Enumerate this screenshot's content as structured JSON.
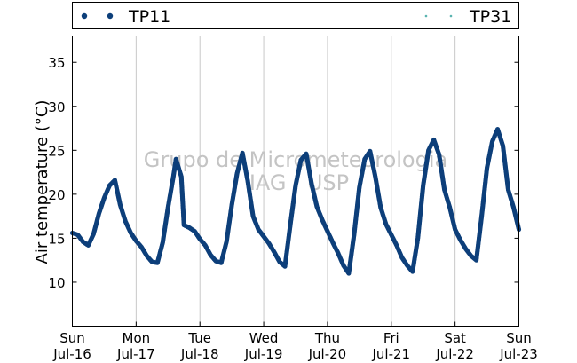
{
  "chart_data": {
    "type": "scatter",
    "title": "",
    "xlabel": "",
    "ylabel": "Air temperature (°C)",
    "watermark": [
      "Grupo de Micrometeorologia",
      "IAG / USP"
    ],
    "legend": {
      "placement": "top",
      "entries": [
        "TP11",
        "TP31"
      ]
    },
    "xlim": [
      "2023-07-16",
      "2023-07-23"
    ],
    "ylim": [
      5,
      38
    ],
    "yticks": [
      10,
      15,
      20,
      25,
      30,
      35
    ],
    "xticks": [
      {
        "day": "Sun",
        "date": "Jul-16"
      },
      {
        "day": "Mon",
        "date": "Jul-17"
      },
      {
        "day": "Tue",
        "date": "Jul-18"
      },
      {
        "day": "Wed",
        "date": "Jul-19"
      },
      {
        "day": "Thu",
        "date": "Jul-20"
      },
      {
        "day": "Fri",
        "date": "Jul-21"
      },
      {
        "day": "Sat",
        "date": "Jul-22"
      },
      {
        "day": "Sun",
        "date": "Jul-23"
      }
    ],
    "grid": "vertical",
    "series": [
      {
        "name": "TP11",
        "color": "#0d3f7a",
        "x": [
          "2023-07-16 00:00",
          "2023-07-16 02:00",
          "2023-07-16 04:00",
          "2023-07-16 06:00",
          "2023-07-16 08:00",
          "2023-07-16 10:00",
          "2023-07-16 12:00",
          "2023-07-16 14:00",
          "2023-07-16 16:00",
          "2023-07-16 18:00",
          "2023-07-16 20:00",
          "2023-07-16 22:00",
          "2023-07-17 00:00",
          "2023-07-17 02:00",
          "2023-07-17 04:00",
          "2023-07-17 06:00",
          "2023-07-17 08:00",
          "2023-07-17 10:00",
          "2023-07-17 12:00",
          "2023-07-17 14:00",
          "2023-07-17 15:00",
          "2023-07-17 17:00",
          "2023-07-17 18:00",
          "2023-07-17 20:00",
          "2023-07-17 22:00",
          "2023-07-18 00:00",
          "2023-07-18 02:00",
          "2023-07-18 04:00",
          "2023-07-18 06:00",
          "2023-07-18 08:00",
          "2023-07-18 10:00",
          "2023-07-18 12:00",
          "2023-07-18 14:00",
          "2023-07-18 16:00",
          "2023-07-18 18:00",
          "2023-07-18 20:00",
          "2023-07-18 22:00",
          "2023-07-19 00:00",
          "2023-07-19 02:00",
          "2023-07-19 04:00",
          "2023-07-19 06:00",
          "2023-07-19 08:00",
          "2023-07-19 10:00",
          "2023-07-19 12:00",
          "2023-07-19 14:00",
          "2023-07-19 16:00",
          "2023-07-19 18:00",
          "2023-07-19 20:00",
          "2023-07-19 22:00",
          "2023-07-20 00:00",
          "2023-07-20 02:00",
          "2023-07-20 04:00",
          "2023-07-20 06:00",
          "2023-07-20 08:00",
          "2023-07-20 10:00",
          "2023-07-20 12:00",
          "2023-07-20 14:00",
          "2023-07-20 16:00",
          "2023-07-20 18:00",
          "2023-07-20 20:00",
          "2023-07-20 22:00",
          "2023-07-21 00:00",
          "2023-07-21 02:00",
          "2023-07-21 04:00",
          "2023-07-21 06:00",
          "2023-07-21 08:00",
          "2023-07-21 10:00",
          "2023-07-21 12:00",
          "2023-07-21 14:00",
          "2023-07-21 16:00",
          "2023-07-21 18:00",
          "2023-07-21 20:00",
          "2023-07-21 22:00",
          "2023-07-22 00:00",
          "2023-07-22 02:00",
          "2023-07-22 04:00",
          "2023-07-22 06:00",
          "2023-07-22 08:00",
          "2023-07-22 10:00",
          "2023-07-22 12:00",
          "2023-07-22 14:00",
          "2023-07-22 16:00",
          "2023-07-22 18:00",
          "2023-07-22 20:00",
          "2023-07-22 22:00",
          "2023-07-23 00:00"
        ],
        "y": [
          15.6,
          15.4,
          14.6,
          14.2,
          15.5,
          17.8,
          19.6,
          21.0,
          21.6,
          18.8,
          16.9,
          15.6,
          14.7,
          14.0,
          13.0,
          12.3,
          12.2,
          14.5,
          18.5,
          22.0,
          24.0,
          22.0,
          16.5,
          16.2,
          15.8,
          14.9,
          14.2,
          13.1,
          12.4,
          12.2,
          14.6,
          18.8,
          22.4,
          24.7,
          21.5,
          17.5,
          16.0,
          15.2,
          14.4,
          13.4,
          12.3,
          11.8,
          16.5,
          21.0,
          23.9,
          24.6,
          21.2,
          18.6,
          17.1,
          15.8,
          14.5,
          13.3,
          11.9,
          11.0,
          15.4,
          20.8,
          24.0,
          24.9,
          22.0,
          18.5,
          16.6,
          15.4,
          14.2,
          12.8,
          11.9,
          11.2,
          15.0,
          21.0,
          25.0,
          26.2,
          24.5,
          20.5,
          18.5,
          16.0,
          14.8,
          13.8,
          13.0,
          12.5,
          17.5,
          23.0,
          26.0,
          27.4,
          25.5,
          20.5,
          18.5,
          16.0
        ]
      },
      {
        "name": "TP31",
        "color": "#5ab4b0",
        "x": [],
        "y": []
      }
    ]
  }
}
